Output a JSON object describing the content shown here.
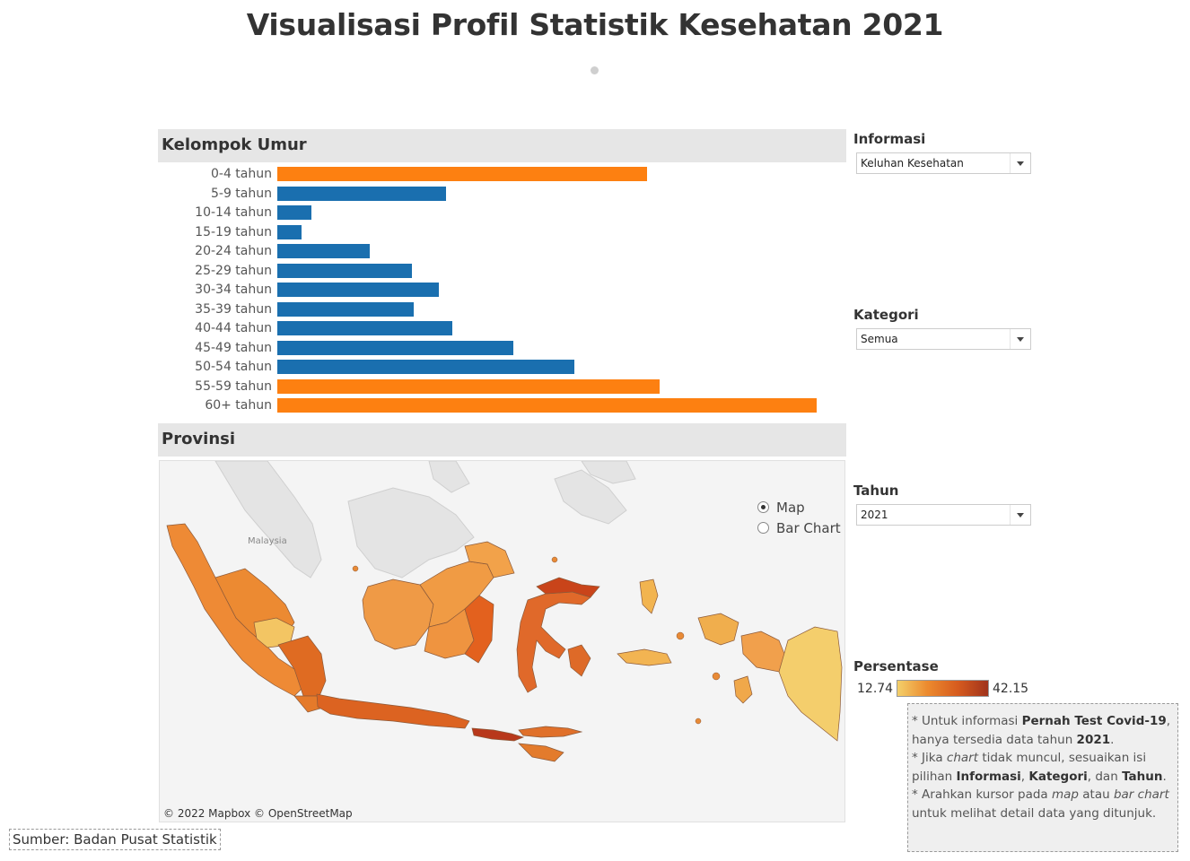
{
  "title": "Visualisasi Profil Statistik Kesehatan 2021",
  "colors": {
    "highlight": "#fd8011",
    "normal": "#1a6faf",
    "legend_low": "#f3cf6a",
    "legend_high": "#a0331c"
  },
  "sections": {
    "umur": "Kelompok Umur",
    "provinsi": "Provinsi"
  },
  "chart_data": {
    "type": "bar",
    "orientation": "horizontal",
    "categories": [
      "0-4 tahun",
      "5-9 tahun",
      "10-14 tahun",
      "15-19 tahun",
      "20-24 tahun",
      "25-29 tahun",
      "30-34 tahun",
      "35-39 tahun",
      "40-44 tahun",
      "45-49 tahun",
      "50-54 tahun",
      "55-59 tahun",
      "60+ tahun"
    ],
    "values": [
      30.3,
      13.8,
      2.8,
      2.0,
      7.6,
      11.0,
      13.2,
      11.2,
      14.3,
      19.3,
      24.3,
      31.3,
      44.2
    ],
    "highlighted": [
      true,
      false,
      false,
      false,
      false,
      false,
      false,
      false,
      false,
      false,
      false,
      true,
      true
    ],
    "xlim": [
      0,
      46.6
    ],
    "grid": false
  },
  "map": {
    "attribution": "© 2022 Mapbox © OpenStreetMap",
    "country_label": "Malaysia",
    "view_toggle": {
      "options": [
        "Map",
        "Bar Chart"
      ],
      "selected": "Map"
    }
  },
  "filters": {
    "informasi": {
      "label": "Informasi",
      "value": "Keluhan Kesehatan"
    },
    "kategori": {
      "label": "Kategori",
      "value": "Semua"
    },
    "tahun": {
      "label": "Tahun",
      "value": "2021"
    }
  },
  "legend": {
    "label": "Persentase",
    "min": "12.74",
    "max": "42.15"
  },
  "notes": {
    "l1a": "* Untuk informasi ",
    "l1b": "Pernah Test Covid-19",
    "l1c": ", hanya tersedia data tahun ",
    "l1d": "2021",
    "l1e": ".",
    "l2a": "* Jika ",
    "l2b": "chart",
    "l2c": " tidak muncul, sesuaikan isi pilihan ",
    "l2d": "Informasi",
    "l2e": ", ",
    "l2f": "Kategori",
    "l2g": ", dan ",
    "l2h": "Tahun",
    "l2i": ".",
    "l3a": "* Arahkan kursor pada ",
    "l3b": "map",
    "l3c": " atau ",
    "l3d": "bar chart",
    "l3e": " untuk melihat detail data yang ditunjuk."
  },
  "source": "Sumber: Badan Pusat Statistik"
}
